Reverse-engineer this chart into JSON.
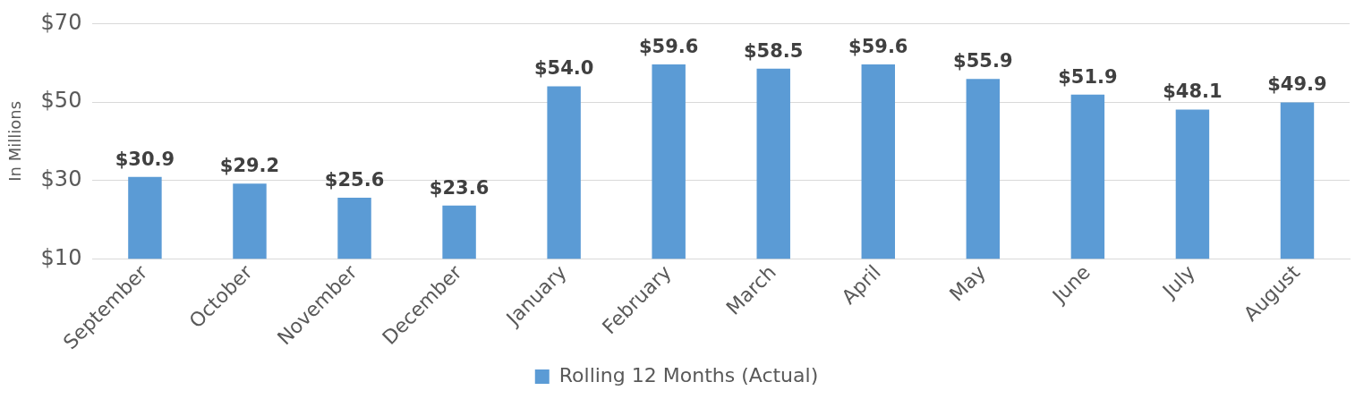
{
  "chart_data": {
    "type": "bar",
    "ylabel": "In Millions",
    "categories": [
      "September",
      "October",
      "November",
      "December",
      "January",
      "February",
      "March",
      "April",
      "May",
      "June",
      "July",
      "August"
    ],
    "series": [
      {
        "name": "Rolling 12 Months (Actual)",
        "color": "#5b9bd5",
        "values": [
          30.9,
          29.2,
          25.6,
          23.6,
          54.0,
          59.6,
          58.5,
          59.6,
          55.9,
          51.9,
          48.1,
          49.9
        ],
        "value_labels": [
          "$30.9",
          "$29.2",
          "$25.6",
          "$23.6",
          "$54.0",
          "$59.6",
          "$58.5",
          "$59.6",
          "$55.9",
          "$51.9",
          "$48.1",
          "$49.9"
        ]
      }
    ],
    "ylim": [
      10,
      70
    ],
    "yticks": [
      {
        "value": 10,
        "label": "$10"
      },
      {
        "value": 30,
        "label": "$30"
      },
      {
        "value": 50,
        "label": "$50"
      },
      {
        "value": 70,
        "label": "$70"
      }
    ],
    "grid": "y",
    "legend": "bottom"
  }
}
